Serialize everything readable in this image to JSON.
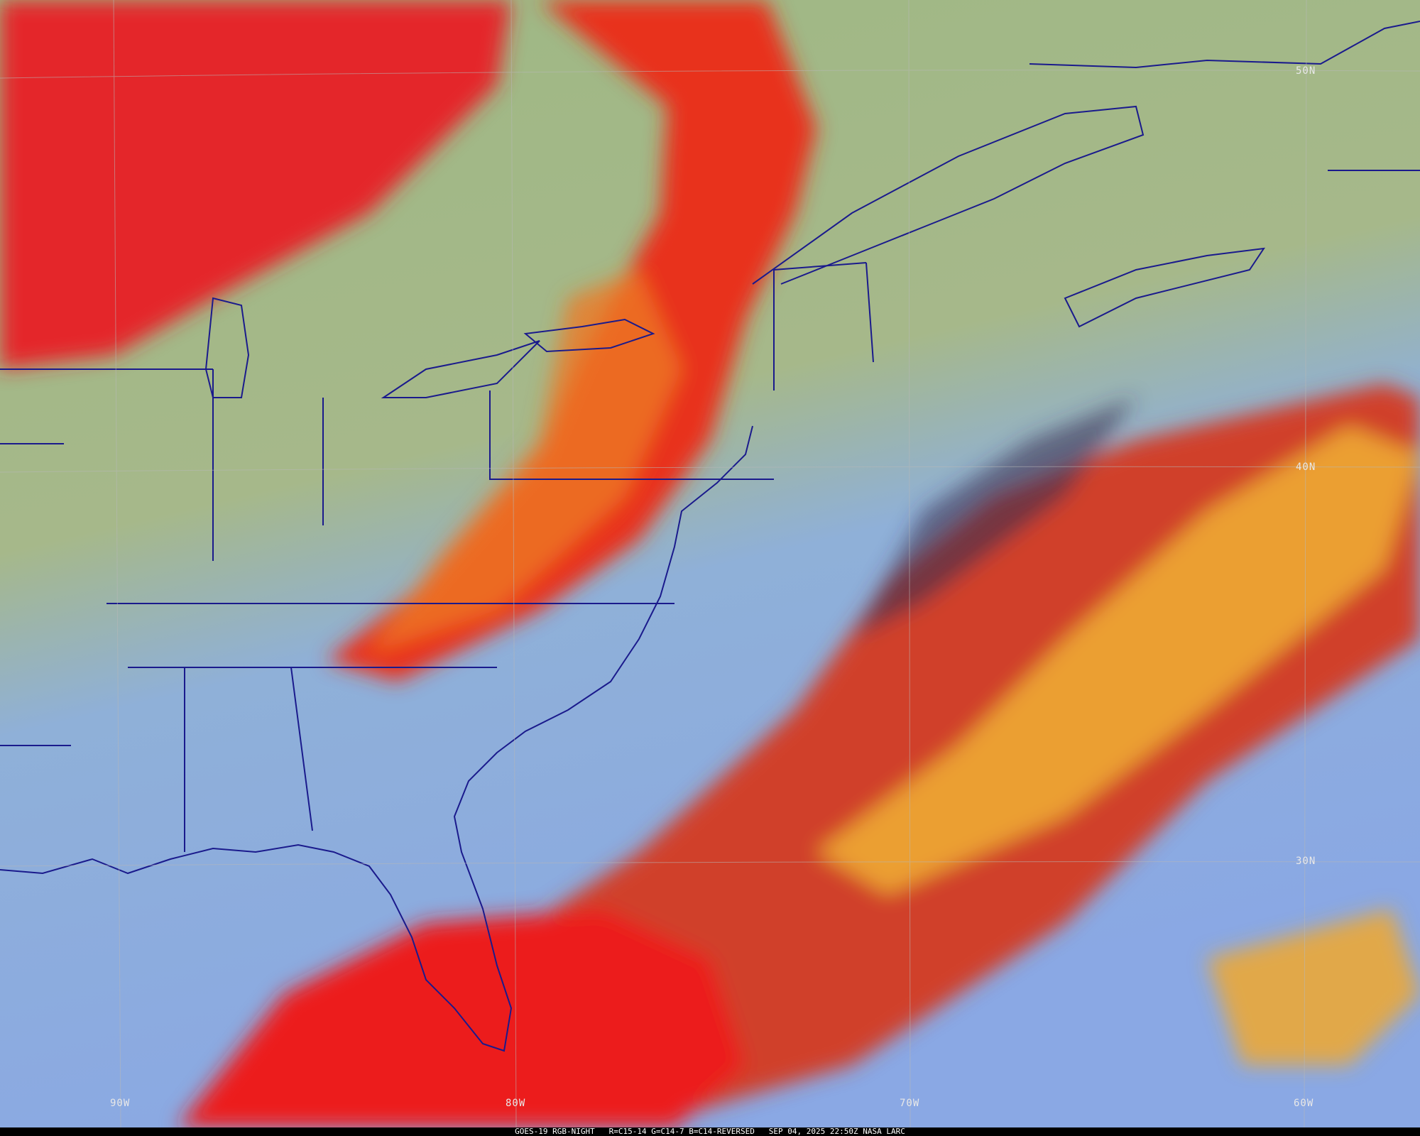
{
  "caption": {
    "satellite_product": "GOES-19 RGB-NIGHT",
    "channels": "R=C15-14 G=C14-7 B=C14-REVERSED",
    "timestamp": "SEP 04, 2025 22:50Z NASA LARC"
  },
  "grid_labels": {
    "lat": [
      "50N",
      "40N",
      "30N"
    ],
    "lon": [
      "90W",
      "80W",
      "70W",
      "60W"
    ]
  },
  "colors": {
    "clear_land": "#a8b87a",
    "clear_ocean": "#8aaee0",
    "high_cloud": "#e8201c",
    "mid_cloud": "#f0b030",
    "boundaries": "#1a1a8c"
  }
}
